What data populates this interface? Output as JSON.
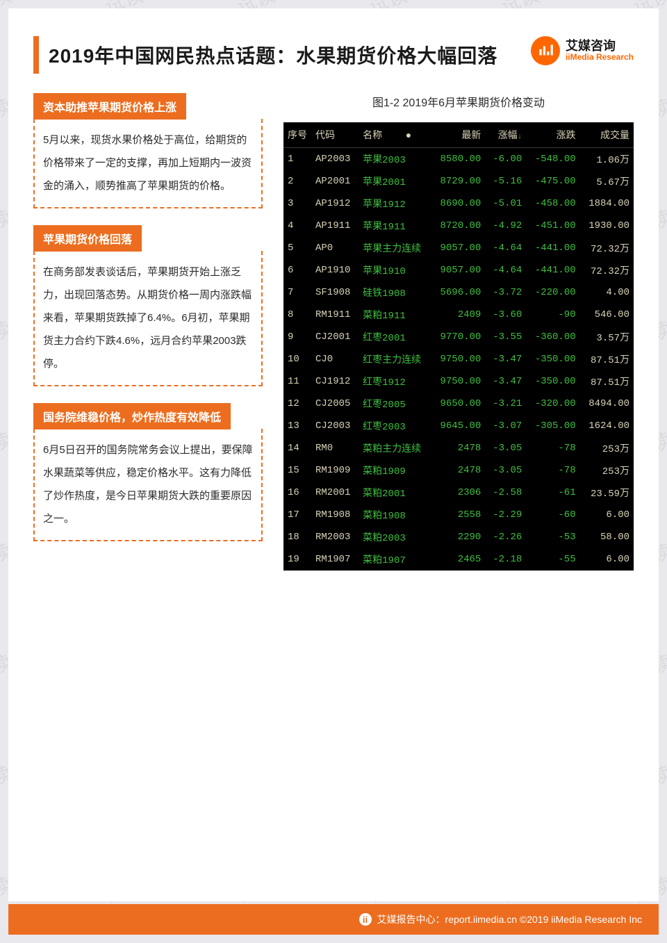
{
  "brand": {
    "cn": "艾媒咨询",
    "en": "iiMedia Research"
  },
  "title": "2019年中国网民热点话题：水果期货价格大幅回落",
  "colors": {
    "accent": "#ec6d1f",
    "page_bg": "#ffffff",
    "outer_bg": "#e8e8ed",
    "table_bg": "#000000",
    "table_text": "#d9d2b8",
    "down_color": "#3fbf3f"
  },
  "sections": [
    {
      "header": "资本助推苹果期货价格上涨",
      "body": "5月以来，现货水果价格处于高位，给期货的价格带来了一定的支撑，再加上短期内一波资金的涌入，顺势推高了苹果期货的价格。"
    },
    {
      "header": "苹果期货价格回落",
      "body": "在商务部发表谈话后，苹果期货开始上涨乏力，出现回落态势。从期货价格一周内涨跌幅来看，苹果期货跌掉了6.4%。6月初，苹果期货主力合约下跌4.6%，远月合约苹果2003跌停。"
    },
    {
      "header": "国务院维稳价格，炒作热度有效降低",
      "body": "6月5日召开的国务院常务会议上提出，要保障水果蔬菜等供应，稳定价格水平。这有力降低了炒作热度，是今日苹果期货大跌的重要原因之一。"
    }
  ],
  "chart": {
    "caption": "图1-2 2019年6月苹果期货价格变动",
    "columns": [
      "序号",
      "代码",
      "名称",
      "最新",
      "涨幅↓",
      "涨跌",
      "成交量"
    ],
    "col_align": [
      "left",
      "left",
      "left",
      "right",
      "right",
      "right",
      "right"
    ],
    "rows": [
      [
        "1",
        "AP2003",
        "苹果2003",
        "8580.00",
        "-6.00",
        "-548.00",
        "1.06万"
      ],
      [
        "2",
        "AP2001",
        "苹果2001",
        "8729.00",
        "-5.16",
        "-475.00",
        "5.67万"
      ],
      [
        "3",
        "AP1912",
        "苹果1912",
        "8690.00",
        "-5.01",
        "-458.00",
        "1884.00"
      ],
      [
        "4",
        "AP1911",
        "苹果1911",
        "8720.00",
        "-4.92",
        "-451.00",
        "1930.00"
      ],
      [
        "5",
        "AP0",
        "苹果主力连续",
        "9057.00",
        "-4.64",
        "-441.00",
        "72.32万"
      ],
      [
        "6",
        "AP1910",
        "苹果1910",
        "9057.00",
        "-4.64",
        "-441.00",
        "72.32万"
      ],
      [
        "7",
        "SF1908",
        "硅铁1908",
        "5696.00",
        "-3.72",
        "-220.00",
        "4.00"
      ],
      [
        "8",
        "RM1911",
        "菜粕1911",
        "2409",
        "-3.60",
        "-90",
        "546.00"
      ],
      [
        "9",
        "CJ2001",
        "红枣2001",
        "9770.00",
        "-3.55",
        "-360.00",
        "3.57万"
      ],
      [
        "10",
        "CJ0",
        "红枣主力连续",
        "9750.00",
        "-3.47",
        "-350.00",
        "87.51万"
      ],
      [
        "11",
        "CJ1912",
        "红枣1912",
        "9750.00",
        "-3.47",
        "-350.00",
        "87.51万"
      ],
      [
        "12",
        "CJ2005",
        "红枣2005",
        "9650.00",
        "-3.21",
        "-320.00",
        "8494.00"
      ],
      [
        "13",
        "CJ2003",
        "红枣2003",
        "9645.00",
        "-3.07",
        "-305.00",
        "1624.00"
      ],
      [
        "14",
        "RM0",
        "菜粕主力连续",
        "2478",
        "-3.05",
        "-78",
        "253万"
      ],
      [
        "15",
        "RM1909",
        "菜粕1909",
        "2478",
        "-3.05",
        "-78",
        "253万"
      ],
      [
        "16",
        "RM2001",
        "菜粕2001",
        "2306",
        "-2.58",
        "-61",
        "23.59万"
      ],
      [
        "17",
        "RM1908",
        "菜粕1908",
        "2558",
        "-2.29",
        "-60",
        "6.00"
      ],
      [
        "18",
        "RM2003",
        "菜粕2003",
        "2290",
        "-2.26",
        "-53",
        "58.00"
      ],
      [
        "19",
        "RM1907",
        "菜粕1907",
        "2465",
        "-2.18",
        "-55",
        "6.00"
      ]
    ]
  },
  "footer": "艾媒报告中心：report.iimedia.cn   ©2019  iiMedia Research Inc",
  "watermark_text": "试读"
}
